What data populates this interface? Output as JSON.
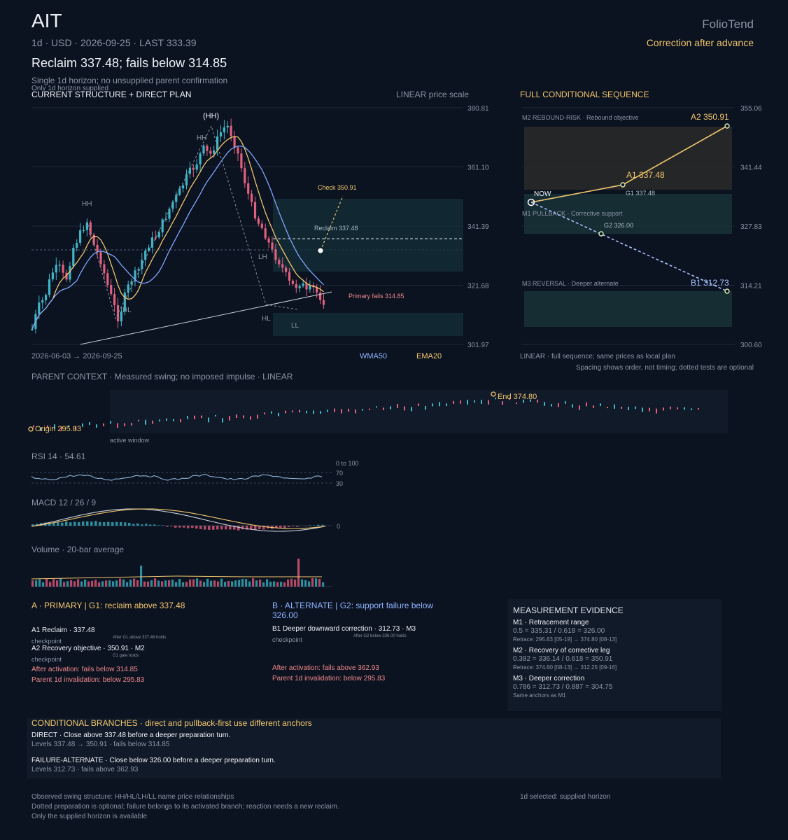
{
  "header": {
    "ticker": "AIT",
    "meta": "1d · USD · 2026-09-25 · LAST 333.39",
    "brand": "FolioTend",
    "state": "Correction after advance",
    "headline": "Reclaim 337.48; fails below 314.85",
    "subline": "Single 1d horizon; no unsupplied parent confirmation",
    "note": "Only 1d horizon supplied"
  },
  "main_chart": {
    "title": "CURRENT STRUCTURE + DIRECT PLAN",
    "scale": "LINEAR price scale",
    "y_ticks": [
      "380.81",
      "361.10",
      "341.39",
      "321.68",
      "301.97"
    ],
    "date_range": "2026-06-03 → 2026-09-25",
    "legend_wma": "WMA50",
    "legend_ema": "EMA20",
    "labels": {
      "hh_top": "(HH)",
      "hh_a": "HH",
      "hh_b": "HH",
      "hl_a": "HL",
      "hl_b": "HL",
      "lh": "LH",
      "ll": "LL",
      "check": "Check 350.91",
      "reclaim": "Reclaim 337.48",
      "fails": "Primary fails 314.85"
    },
    "colors": {
      "up": "#3fb6c8",
      "down": "#e0607e",
      "ema": "#f2c66d",
      "wma": "#7fa6ff"
    }
  },
  "sequence": {
    "title": "FULL CONDITIONAL SEQUENCE",
    "y_ticks": [
      "355.06",
      "341.44",
      "327.83",
      "314.21",
      "300.60"
    ],
    "zones": {
      "m2": "M2 REBOUND-RISK · Rebound objective",
      "m1": "M1 PULLBACK · Corrective support",
      "m3": "M3 REVERSAL · Deeper alternate"
    },
    "points": {
      "now": "NOW",
      "a1": "A1 337.48",
      "g1": "G1 337.48",
      "a2": "A2 350.91",
      "g2": "G2 326.00",
      "b1": "B1 312.73"
    },
    "footer1": "LINEAR · full sequence; same prices as local plan",
    "footer2": "Spacing shows order, not timing; dotted tests are optional"
  },
  "parent": {
    "title": "PARENT CONTEXT · Measured swing; no imposed impulse · LINEAR",
    "origin": "Origin 295.83",
    "end": "End 374.80",
    "window": "active window"
  },
  "rsi": {
    "title": "RSI 14 · 54.61",
    "range": "0 to 100",
    "hi": "70",
    "lo": "30"
  },
  "macd": {
    "title": "MACD 12 / 26 / 9",
    "zero": "0"
  },
  "volume": {
    "title": "Volume · 20-bar average"
  },
  "plan_a": {
    "title": "A · PRIMARY | G1: reclaim above 337.48",
    "row1": "A1 Reclaim · 337.48",
    "row1_sub": "checkpoint",
    "row1_note": "After G1 above 337.48 holds",
    "row2": "A2 Recovery objective · 350.91 · M2",
    "row2_sub": "checkpoint",
    "row2_note": "G1 gate holds",
    "fail": "After activation: fails below 314.85",
    "parent": "Parent 1d invalidation: below 295.83"
  },
  "plan_b": {
    "title1": "B · ALTERNATE | G2: support failure below",
    "title2": "326.00",
    "row1": "B1 Deeper downward correction · 312.73 · M3",
    "row1_sub": "checkpoint",
    "row1_note": "After G2 below 326.00 holds",
    "fail": "After activation: fails above 362.93",
    "parent": "Parent 1d invalidation: below 295.83"
  },
  "evidence": {
    "title": "MEASUREMENT EVIDENCE",
    "m1_head": "M1 · Retracement range",
    "m1_val": "0.5 = 335.31 / 0.618 = 326.00",
    "m1_note": "Retrace: 295.83 [05-19] → 374.80 [08-13]",
    "m2_head": "M2 · Recovery of corrective leg",
    "m2_val": "0.382 = 336.14 / 0.618 = 350.91",
    "m2_note": "Retrace: 374.80 [08-13] → 312.25 [09-16]",
    "m3_head": "M3 · Deeper correction",
    "m3_val": "0.786 = 312.73 / 0.887 = 304.75",
    "m3_note": "Same anchors as M1"
  },
  "branches": {
    "title": "CONDITIONAL BRANCHES · direct and pullback-first use different anchors",
    "direct": "DIRECT · Close above 337.48 before a deeper preparation turn.",
    "direct_levels": "Levels 337.48 → 350.91 · fails below 314.85",
    "failure": "FAILURE-ALTERNATE · Close below 326.00 before a deeper preparation turn.",
    "failure_levels": "Levels 312.73 · fails above 362.93"
  },
  "footer": {
    "l1": "Observed swing structure: HH/HL/LH/LL name price relationships",
    "l2": "Dotted preparation is optional; failure belongs to its activated branch; reaction needs a new reclaim.",
    "l3": "Only the supplied horizon is available",
    "right": "1d selected: supplied horizon"
  }
}
